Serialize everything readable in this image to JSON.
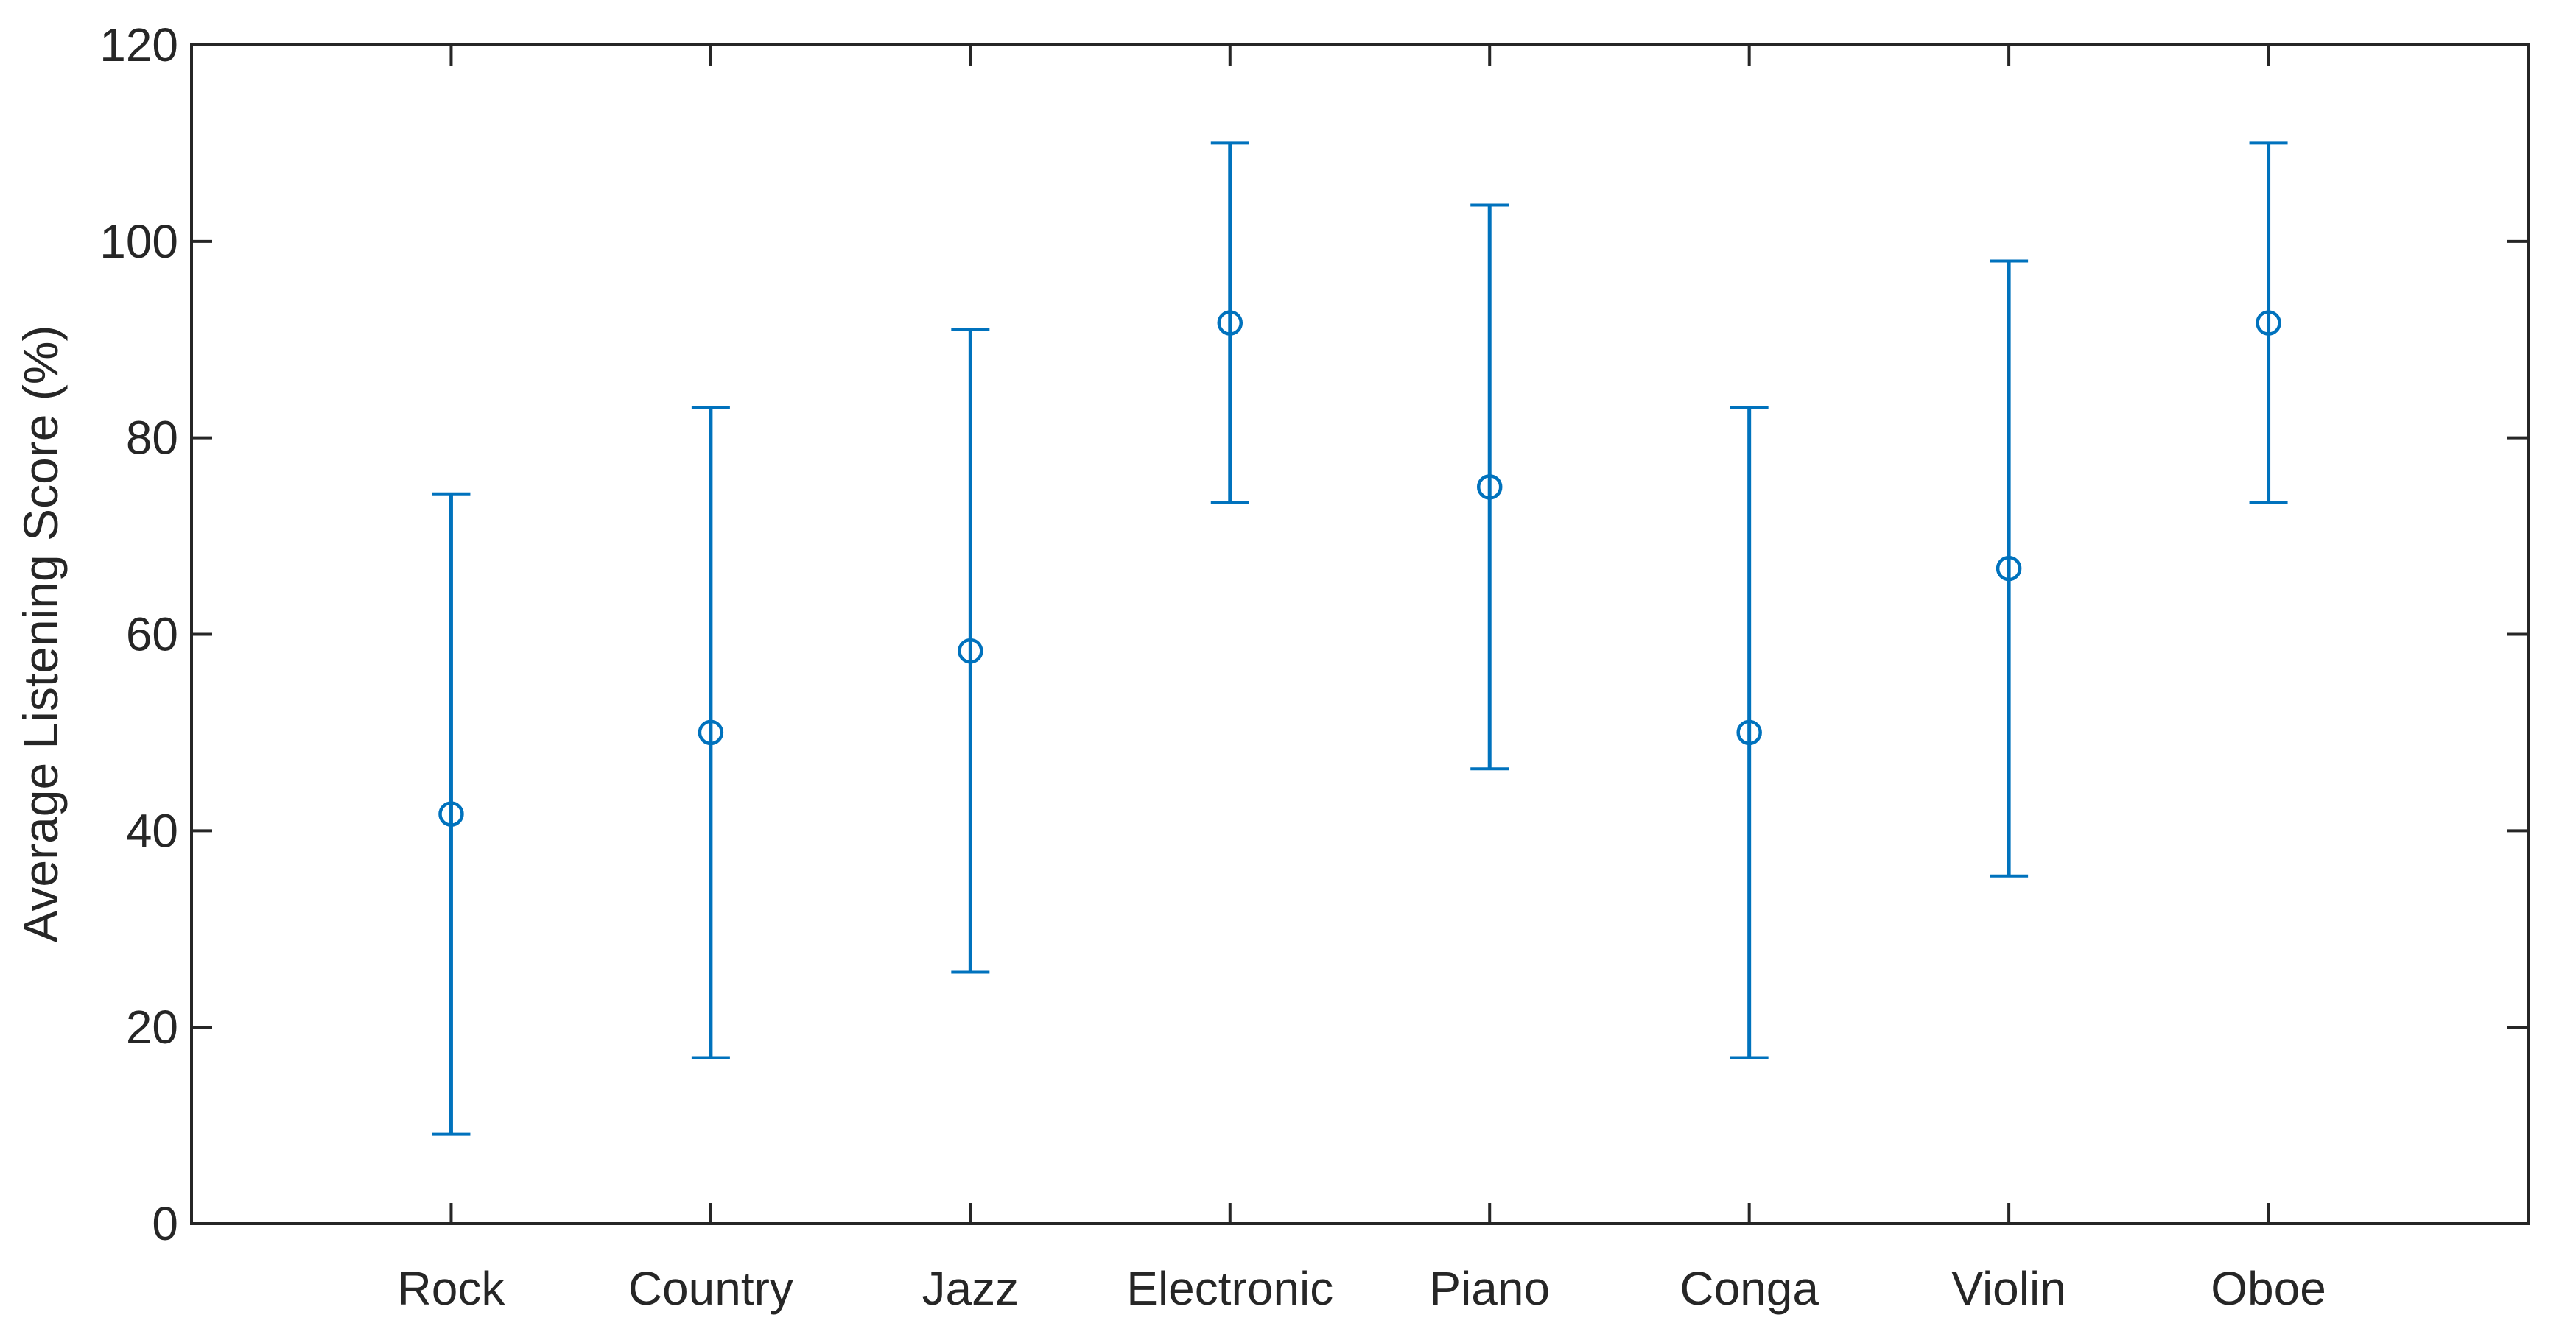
{
  "figure": {
    "background": "#ffffff"
  },
  "chart_data": {
    "type": "errorbar",
    "title": "",
    "xlabel": "",
    "ylabel": "Average Listening Score (%)",
    "categories": [
      "Rock",
      "Country",
      "Jazz",
      "Electronic",
      "Piano",
      "Conga",
      "Violin",
      "Oboe"
    ],
    "series": [
      {
        "name": "average-listening-score",
        "means": [
          41.7,
          50.0,
          58.3,
          91.7,
          75.0,
          50.0,
          66.7,
          91.7
        ],
        "errors": [
          32.6,
          33.1,
          32.7,
          18.3,
          28.7,
          33.1,
          31.3,
          18.3
        ],
        "upper_bounds": [
          74.3,
          83.1,
          91.0,
          110.0,
          103.7,
          83.1,
          98.0,
          110.0
        ],
        "lower_bounds": [
          9.1,
          16.9,
          25.6,
          73.4,
          46.3,
          16.9,
          35.4,
          73.4
        ]
      }
    ],
    "ylim": [
      0,
      120
    ],
    "yticks": [
      "0",
      "20",
      "40",
      "60",
      "80",
      "100",
      "120"
    ],
    "xlim_slots": 9,
    "grid": false,
    "legend_position": "none",
    "marker": "open-circle",
    "colors": {
      "series": "#0072BD",
      "axis": "#262626",
      "text": "#262626",
      "background": "#ffffff"
    }
  }
}
